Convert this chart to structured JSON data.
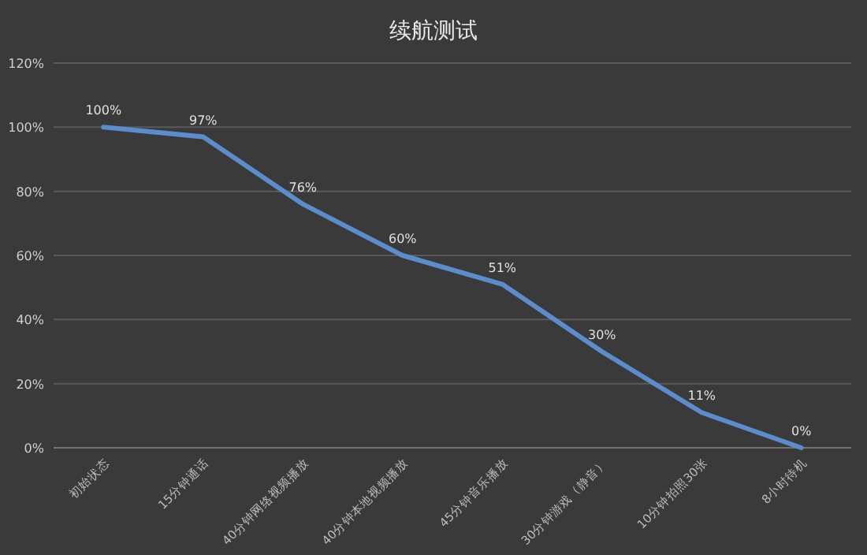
{
  "chart_data": {
    "type": "line",
    "title": "续航测试",
    "categories": [
      "初始状态",
      "15分钟通话",
      "40分钟网络视频播放",
      "40分钟本地视频播放",
      "45分钟音乐播放",
      "30分钟游戏（静音）",
      "10分钟拍照30张",
      "8小时待机"
    ],
    "series": [
      {
        "color": "#5b8ccb",
        "values": [
          100,
          97,
          76,
          60,
          51,
          30,
          11,
          0
        ]
      }
    ],
    "ylim": [
      0,
      120
    ],
    "yticks": [
      {
        "value": 0,
        "label": "0%"
      },
      {
        "value": 20,
        "label": "20%"
      },
      {
        "value": 40,
        "label": "40%"
      },
      {
        "value": 60,
        "label": "60%"
      },
      {
        "value": 80,
        "label": "80%"
      },
      {
        "value": 100,
        "label": "100%"
      },
      {
        "value": 120,
        "label": "120%"
      }
    ],
    "value_labels": [
      "100%",
      "97%",
      "76%",
      "60%",
      "51%",
      "30%",
      "11%",
      "0%"
    ],
    "grid": "y",
    "marker": "none",
    "line_style": "solid"
  }
}
